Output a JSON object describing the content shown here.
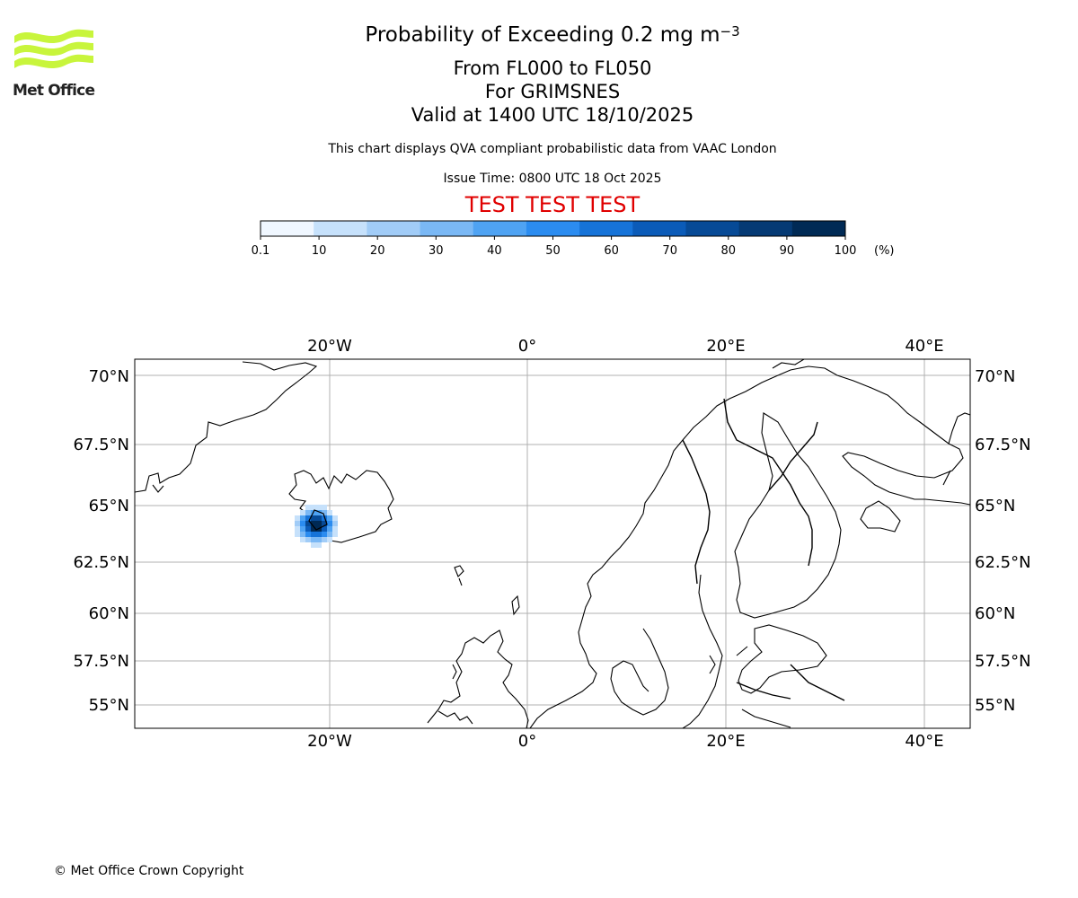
{
  "header": {
    "title_prefix": "Probability of Exceeding 0.2 mg m",
    "title_superscript": "−3",
    "levels": "From FL000 to FL050",
    "location": "For GRIMSNES",
    "valid": "Valid at 1400 UTC 18/10/2025",
    "description": "This chart displays QVA compliant probabilistic data from VAAC London",
    "issue_time": "Issue Time: 0800 UTC 18 Oct 2025",
    "test_banner": "TEST TEST TEST"
  },
  "logo": {
    "text": "Met Office",
    "color": "#c8f53c"
  },
  "colorbar": {
    "unit": "(%)",
    "ticks": [
      "0.1",
      "10",
      "20",
      "30",
      "40",
      "50",
      "60",
      "70",
      "80",
      "90",
      "100"
    ],
    "colors": [
      "#f0f7ff",
      "#c6e1fb",
      "#a1ccf7",
      "#7ab8f5",
      "#4fa3f3",
      "#2b8cf0",
      "#1673d8",
      "#0b5bb8",
      "#074a96",
      "#053a74",
      "#002a55"
    ]
  },
  "map": {
    "lon_ticks": [
      "20°W",
      "0°",
      "20°E",
      "40°E"
    ],
    "lat_ticks": [
      "70°N",
      "67.5°N",
      "65°N",
      "62.5°N",
      "60°N",
      "57.5°N",
      "55°N"
    ],
    "lon_values": [
      -20,
      0,
      20,
      40
    ],
    "lat_values": [
      70,
      67.5,
      65,
      62.5,
      60,
      57.5,
      55
    ]
  },
  "footer": {
    "copyright": "© Met Office Crown Copyright"
  }
}
